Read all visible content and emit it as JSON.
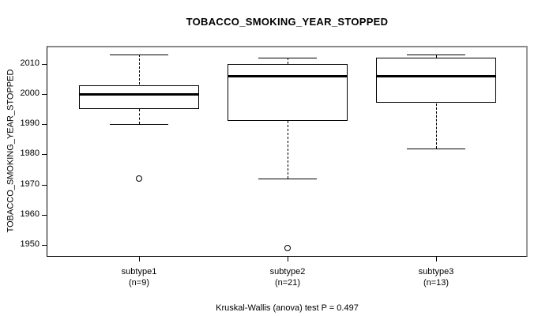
{
  "chart_data": {
    "type": "boxplot",
    "title": "TOBACCO_SMOKING_YEAR_STOPPED",
    "xlabel": "",
    "ylabel": "TOBACCO_SMOKING_YEAR_STOPPED",
    "ylim": [
      1946,
      2016
    ],
    "yticks": [
      1950,
      1960,
      1970,
      1980,
      1990,
      2000,
      2010
    ],
    "grid": false,
    "legend": "none",
    "categories": [
      "subtype1",
      "subtype2",
      "subtype3"
    ],
    "category_sublabels": [
      "(n=9)",
      "(n=21)",
      "(n=13)"
    ],
    "series": [
      {
        "name": "subtype1",
        "n": 9,
        "lower_whisker": 1990,
        "q1": 1995,
        "median": 2000,
        "q3": 2003,
        "upper_whisker": 2013,
        "outliers": [
          1972
        ]
      },
      {
        "name": "subtype2",
        "n": 21,
        "lower_whisker": 1972,
        "q1": 1991,
        "median": 2006,
        "q3": 2010,
        "upper_whisker": 2012,
        "outliers": [
          1949
        ]
      },
      {
        "name": "subtype3",
        "n": 13,
        "lower_whisker": 1982,
        "q1": 1997,
        "median": 2006,
        "q3": 2012,
        "upper_whisker": 2013,
        "outliers": []
      }
    ],
    "annotation": "Kruskal-Wallis (anova) test P = 0.497"
  },
  "colors": {
    "line": "#000000",
    "box_fill": "#ffffff",
    "text": "#000000",
    "background": "#ffffff"
  }
}
